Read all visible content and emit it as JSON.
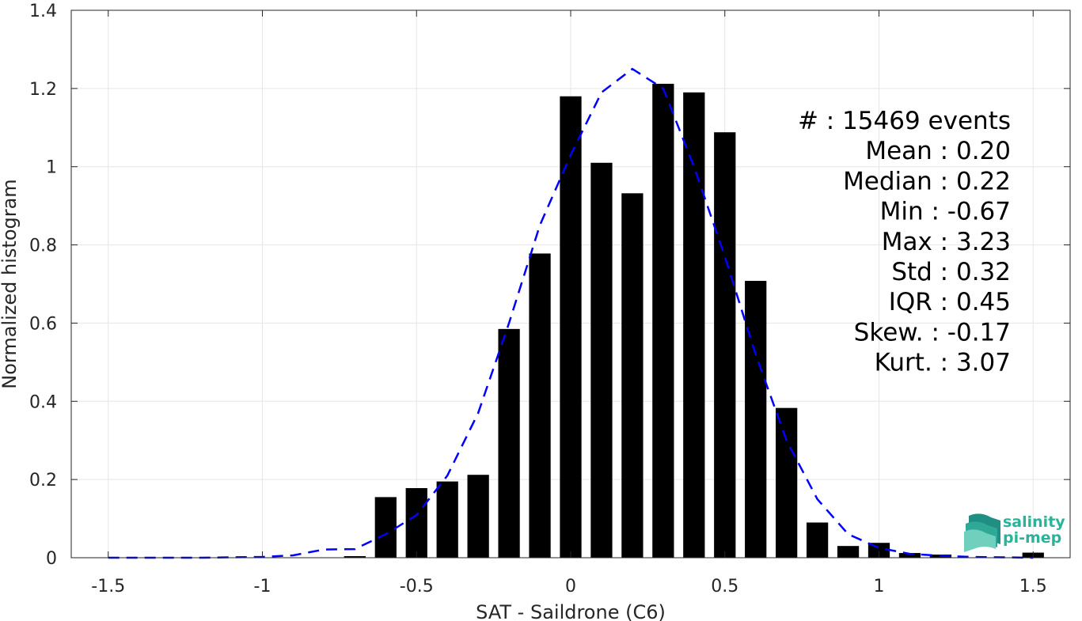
{
  "chart_data": {
    "type": "bar",
    "xlabel": "SAT - Saildrone (C6)",
    "ylabel": "Normalized histogram",
    "xlim": [
      -1.62,
      1.62
    ],
    "ylim": [
      0,
      1.4
    ],
    "grid": true,
    "xticks": [
      -1.5,
      -1,
      -0.5,
      0,
      0.5,
      1,
      1.5
    ],
    "xtick_labels": [
      "-1.5",
      "-1",
      "-0.5",
      "0",
      "0.5",
      "1",
      "1.5"
    ],
    "yticks": [
      0,
      0.2,
      0.4,
      0.6,
      0.8,
      1,
      1.2,
      1.4
    ],
    "ytick_labels": [
      "0",
      "0.2",
      "0.4",
      "0.6",
      "0.8",
      "1",
      "1.2",
      "1.4"
    ],
    "bar_width": 0.07,
    "bars": {
      "x": [
        -0.7,
        -0.6,
        -0.5,
        -0.4,
        -0.3,
        -0.2,
        -0.1,
        0.0,
        0.1,
        0.2,
        0.3,
        0.4,
        0.5,
        0.6,
        0.7,
        0.8,
        0.9,
        1.0,
        1.1,
        1.2,
        1.5
      ],
      "values": [
        0.004,
        0.155,
        0.178,
        0.195,
        0.212,
        0.585,
        0.778,
        1.18,
        1.01,
        0.932,
        1.212,
        1.19,
        1.088,
        0.708,
        0.383,
        0.09,
        0.03,
        0.038,
        0.012,
        0.008,
        0.013
      ],
      "color": "#000000"
    },
    "fit_curve": {
      "style": "dashed",
      "color": "#0000ff",
      "x": [
        -1.5,
        -1.4,
        -1.3,
        -1.2,
        -1.1,
        -1.0,
        -0.9,
        -0.8,
        -0.7,
        -0.6,
        -0.5,
        -0.4,
        -0.3,
        -0.2,
        -0.1,
        0.0,
        0.1,
        0.2,
        0.3,
        0.4,
        0.5,
        0.6,
        0.7,
        0.8,
        0.9,
        1.0,
        1.1,
        1.2,
        1.3,
        1.4,
        1.5
      ],
      "y": [
        0.0,
        0.0,
        0.0,
        0.0,
        0.001,
        0.002,
        0.006,
        0.021,
        0.022,
        0.06,
        0.109,
        0.21,
        0.37,
        0.6,
        0.85,
        1.03,
        1.19,
        1.25,
        1.2,
        1.0,
        0.77,
        0.52,
        0.3,
        0.15,
        0.06,
        0.025,
        0.01,
        0.005,
        0.002,
        0.001,
        0.0
      ]
    },
    "stats": [
      "#  : 15469 events",
      "Mean : 0.20",
      "Median : 0.22",
      "Min : -0.67",
      "Max : 3.23",
      "Std : 0.32",
      "IQR : 0.45",
      "Skew. : -0.17",
      "Kurt. : 3.07"
    ]
  },
  "logo": {
    "line1": "salinity",
    "line2": "pi-mep",
    "color": "#2bb39a"
  }
}
